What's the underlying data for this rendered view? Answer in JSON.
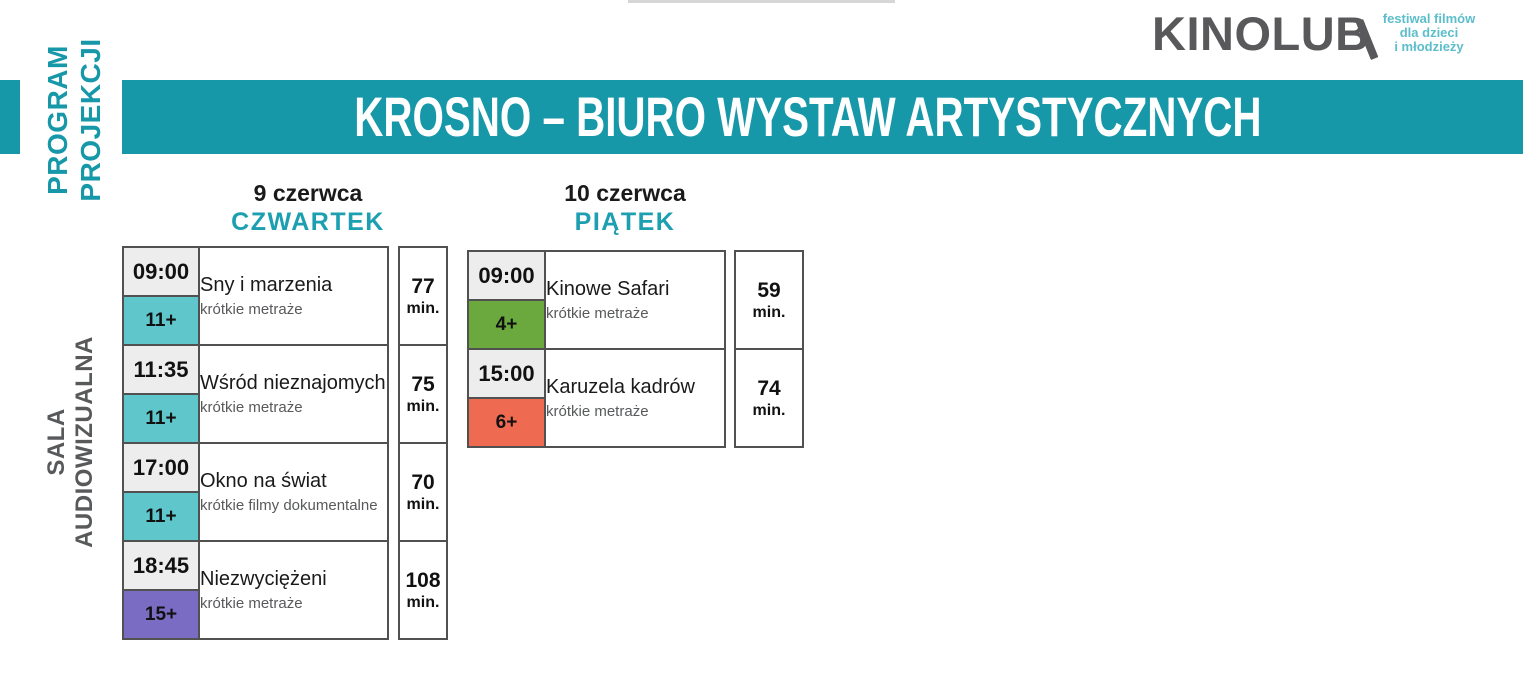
{
  "header": {
    "title": "KROSNO – BIURO WYSTAW ARTYSTYCZNYCH"
  },
  "branding": {
    "logo_text": "KINOLUB",
    "tagline": [
      "festiwal filmów",
      "dla dzieci",
      "i młodzieży"
    ]
  },
  "side_labels": {
    "program_line1": "PROGRAM",
    "program_line2": "PROJEKCJI",
    "room": "SALA AUDIOWIZUALNA"
  },
  "colors": {
    "teal": "#1798A9",
    "teal_light": "#5CBECB",
    "age_teal": "#5FC7CC",
    "age_purple": "#7A6BC3",
    "age_green": "#6BA83D",
    "age_red": "#EE6A51",
    "dark_gray": "#58595B",
    "time_cell_gray": "#EDEDED"
  },
  "days": [
    {
      "date": "9 czerwca",
      "weekday": "CZWARTEK",
      "sessions": [
        {
          "time": "09:00",
          "age": "11+",
          "age_color": "#5FC7CC",
          "title": "Sny i marzenia",
          "subtitle": "krótkie metraże",
          "duration": "77",
          "duration_unit": "min."
        },
        {
          "time": "11:35",
          "age": "11+",
          "age_color": "#5FC7CC",
          "title": "Wśród nieznajomych",
          "subtitle": "krótkie metraże",
          "duration": "75",
          "duration_unit": "min."
        },
        {
          "time": "17:00",
          "age": "11+",
          "age_color": "#5FC7CC",
          "title": "Okno na świat",
          "subtitle": "krótkie filmy dokumentalne",
          "duration": "70",
          "duration_unit": "min."
        },
        {
          "time": "18:45",
          "age": "15+",
          "age_color": "#7A6BC3",
          "title": "Niezwyciężeni",
          "subtitle": "krótkie metraże",
          "duration": "108",
          "duration_unit": "min."
        }
      ]
    },
    {
      "date": "10 czerwca",
      "weekday": "PIĄTEK",
      "sessions": [
        {
          "time": "09:00",
          "age": "4+",
          "age_color": "#6BA83D",
          "title": "Kinowe Safari",
          "subtitle": "krótkie metraże",
          "duration": "59",
          "duration_unit": "min."
        },
        {
          "time": "15:00",
          "age": "6+",
          "age_color": "#EE6A51",
          "title": "Karuzela kadrów",
          "subtitle": "krótkie metraże",
          "duration": "74",
          "duration_unit": "min."
        }
      ]
    }
  ]
}
